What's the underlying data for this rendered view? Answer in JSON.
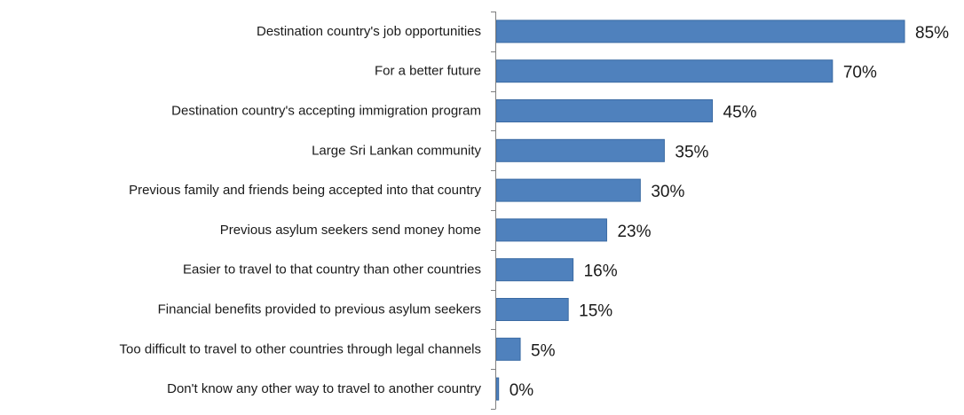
{
  "chart_data": {
    "type": "bar",
    "orientation": "horizontal",
    "title": "",
    "xlabel": "",
    "ylabel": "",
    "xlim": [
      0,
      100
    ],
    "grid": false,
    "legend": "none",
    "bar_color": "#4f81bd",
    "bar_border_color": "#3a6aa3",
    "categories": [
      "Destination country's job opportunities",
      "For a better future",
      "Destination country's accepting immigration program",
      "Large Sri Lankan community",
      "Previous family and friends being accepted into that country",
      "Previous asylum seekers send money home",
      "Easier to travel to that country than other countries",
      "Financial benefits provided to previous asylum seekers",
      "Too difficult to travel to other countries through legal channels",
      "Don't know any other way to travel to another country"
    ],
    "values": [
      85,
      70,
      45,
      35,
      30,
      23,
      16,
      15,
      5,
      0.5
    ],
    "value_labels": [
      "85%",
      "70%",
      "45%",
      "35%",
      "30%",
      "23%",
      "16%",
      "15%",
      "5%",
      "0%"
    ]
  }
}
